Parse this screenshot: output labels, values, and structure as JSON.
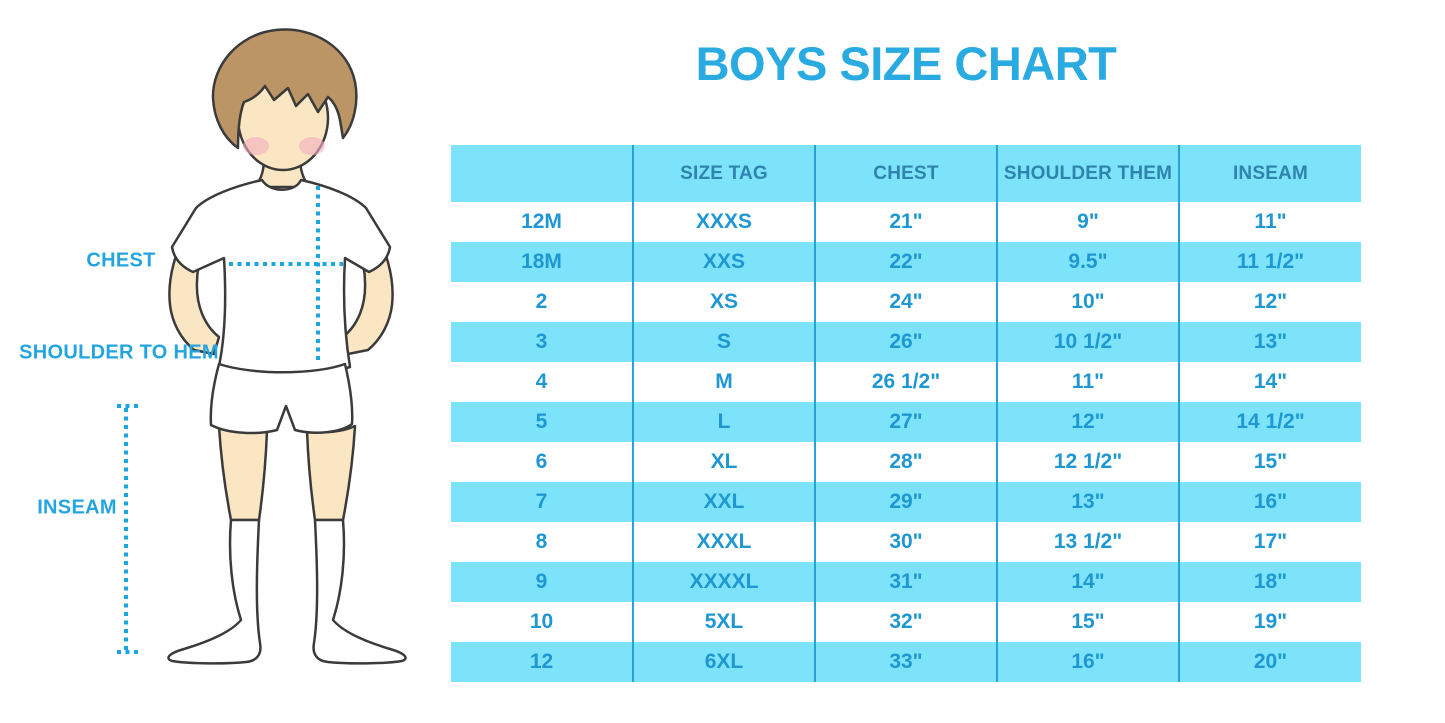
{
  "title": "BOYS SIZE CHART",
  "colors": {
    "accent": "#29ABE2",
    "header_bg": "#7CE3FA",
    "row_stripe": "#7CE3FA",
    "header_text": "#2E84AC",
    "cell_text": "#1E97D2",
    "divider": "#27A2D3",
    "label_text": "#24A5DF",
    "dotted_line": "#1CA6E0",
    "skin": "#FAE6C2",
    "hair": "#BC9566",
    "cheek": "#F2AEC0",
    "outline": "#3B3B3B"
  },
  "figure": {
    "labels": {
      "chest": "CHEST",
      "shoulder_to_hem": "SHOULDER TO HEM",
      "inseam": "INSEAM"
    }
  },
  "chart_data": {
    "type": "table",
    "title": "BOYS SIZE CHART",
    "columns": [
      "",
      "SIZE TAG",
      "CHEST",
      "SHOULDER THEM",
      "INSEAM"
    ],
    "rows": [
      [
        "12M",
        "XXXS",
        "21\"",
        "9\"",
        "11\""
      ],
      [
        "18M",
        "XXS",
        "22\"",
        "9.5\"",
        "11 1/2\""
      ],
      [
        "2",
        "XS",
        "24\"",
        "10\"",
        "12\""
      ],
      [
        "3",
        "S",
        "26\"",
        "10 1/2\"",
        "13\""
      ],
      [
        "4",
        "M",
        "26 1/2\"",
        "11\"",
        "14\""
      ],
      [
        "5",
        "L",
        "27\"",
        "12\"",
        "14 1/2\""
      ],
      [
        "6",
        "XL",
        "28\"",
        "12 1/2\"",
        "15\""
      ],
      [
        "7",
        "XXL",
        "29\"",
        "13\"",
        "16\""
      ],
      [
        "8",
        "XXXL",
        "30\"",
        "13 1/2\"",
        "17\""
      ],
      [
        "9",
        "XXXXL",
        "31\"",
        "14\"",
        "18\""
      ],
      [
        "10",
        "5XL",
        "32\"",
        "15\"",
        "19\""
      ],
      [
        "12",
        "6XL",
        "33\"",
        "16\"",
        "20\""
      ]
    ]
  }
}
